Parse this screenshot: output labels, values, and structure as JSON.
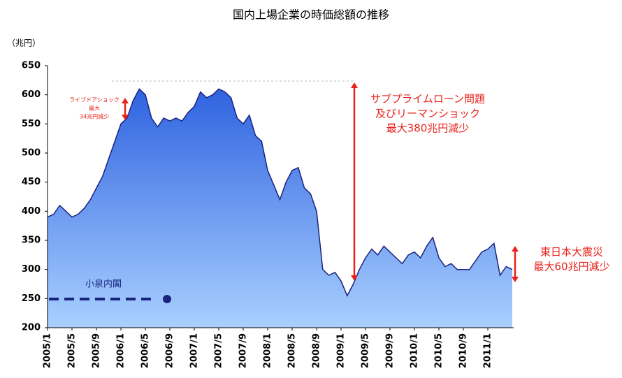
{
  "chart_data": {
    "type": "area",
    "title": "国内上場企業の時価総額の推移",
    "y_label": "（兆円）",
    "categories": [
      "2005/1",
      null,
      null,
      null,
      "2005/5",
      null,
      null,
      null,
      "2005/9",
      null,
      null,
      null,
      "2006/1",
      null,
      null,
      null,
      "2006/5",
      null,
      null,
      null,
      "2006/9",
      null,
      null,
      null,
      "2007/1",
      null,
      null,
      null,
      "2007/5",
      null,
      null,
      null,
      "2007/9",
      null,
      null,
      null,
      "2008/1",
      null,
      null,
      null,
      "2008/5",
      null,
      null,
      null,
      "2008/9",
      null,
      null,
      null,
      "2009/1",
      null,
      null,
      null,
      "2009/5",
      null,
      null,
      null,
      "2009/9",
      null,
      null,
      null,
      "2010/1",
      null,
      null,
      null,
      "2010/5",
      null,
      null,
      null,
      "2010/9",
      null,
      null,
      null,
      "2011/1",
      null,
      null,
      null,
      null
    ],
    "values": [
      390,
      395,
      410,
      400,
      390,
      395,
      405,
      420,
      440,
      460,
      490,
      520,
      550,
      560,
      590,
      610,
      600,
      560,
      545,
      560,
      555,
      560,
      555,
      570,
      580,
      605,
      595,
      600,
      610,
      605,
      595,
      560,
      550,
      565,
      530,
      520,
      470,
      445,
      420,
      450,
      470,
      475,
      440,
      430,
      400,
      300,
      290,
      295,
      280,
      255,
      275,
      300,
      320,
      335,
      325,
      340,
      330,
      320,
      310,
      325,
      330,
      320,
      340,
      355,
      320,
      305,
      310,
      300,
      300,
      300,
      315,
      330,
      335,
      345,
      290,
      305,
      300
    ],
    "ylim": [
      200,
      650
    ],
    "yticks": [
      200,
      250,
      300,
      350,
      400,
      450,
      500,
      550,
      600,
      650
    ],
    "line_color": "#1a237e",
    "fill_top": "#2f63e0",
    "fill_bottom": "#a9d0ff",
    "annotations": [
      {
        "lines": [
          "ライブドアショック",
          "最大",
          "34兆円減少"
        ]
      },
      {
        "lines": [
          "サブプライムローン問題",
          "及びリーマンショック",
          "最大380兆円減少"
        ]
      },
      {
        "lines": [
          "東日本大震災",
          "最大60兆円減少"
        ]
      },
      {
        "lines": [
          "小泉内閣"
        ]
      }
    ]
  }
}
